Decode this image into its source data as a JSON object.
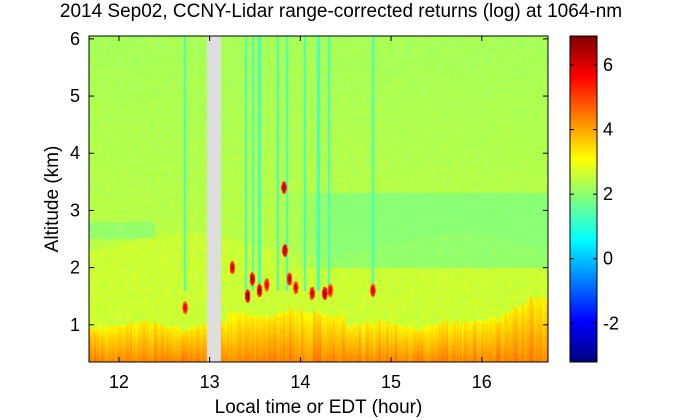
{
  "chart_data": {
    "type": "heatmap",
    "title": "2014 Sep02, CCNY-Lidar range-corrected returns (log) at 1064-nm",
    "xlabel": "Local time or EDT (hour)",
    "ylabel": "Altitude (km)",
    "xlim": [
      11.67,
      16.73
    ],
    "ylim": [
      0.35,
      6.05
    ],
    "x_ticks": [
      "12",
      "13",
      "14",
      "15",
      "16"
    ],
    "y_ticks": [
      "1",
      "2",
      "3",
      "4",
      "5",
      "6"
    ],
    "colorbar": {
      "colormap": "jet",
      "range": [
        -3.2,
        6.9
      ],
      "ticks": [
        "-2",
        "0",
        "2",
        "4",
        "6"
      ]
    },
    "data_gap": [
      12.97,
      13.12
    ],
    "field": {
      "background_value": 2.4,
      "boundary_layer": {
        "top_km": 1.0,
        "value_near_ground": 4.3,
        "value_top": 3.2,
        "residual_layer_top_km": 2.4,
        "residual_value": 2.6
      },
      "clear_band": {
        "from_hour": 13.8,
        "altitude_range_km": [
          2.0,
          3.3
        ],
        "value": 1.6
      },
      "cloud_patches": [
        {
          "time": 12.73,
          "altitude_km": 1.3,
          "value": 6.0
        },
        {
          "time": 13.25,
          "altitude_km": 2.0,
          "value": 6.2
        },
        {
          "time": 13.42,
          "altitude_km": 1.5,
          "value": 6.8
        },
        {
          "time": 13.47,
          "altitude_km": 1.8,
          "value": 6.5
        },
        {
          "time": 13.55,
          "altitude_km": 1.6,
          "value": 6.6
        },
        {
          "time": 13.63,
          "altitude_km": 1.7,
          "value": 6.0
        },
        {
          "time": 13.82,
          "altitude_km": 3.4,
          "value": 6.4
        },
        {
          "time": 13.83,
          "altitude_km": 2.3,
          "value": 6.5
        },
        {
          "time": 13.88,
          "altitude_km": 1.8,
          "value": 6.2
        },
        {
          "time": 13.95,
          "altitude_km": 1.65,
          "value": 6.0
        },
        {
          "time": 14.13,
          "altitude_km": 1.55,
          "value": 6.2
        },
        {
          "time": 14.27,
          "altitude_km": 1.55,
          "value": 6.6
        },
        {
          "time": 14.33,
          "altitude_km": 1.6,
          "value": 6.0
        },
        {
          "time": 14.8,
          "altitude_km": 1.6,
          "value": 6.2
        }
      ],
      "cloud_shadow_columns": [
        12.73,
        13.4,
        13.48,
        13.55,
        13.75,
        13.85,
        14.05,
        14.2,
        14.32,
        14.8
      ]
    }
  }
}
